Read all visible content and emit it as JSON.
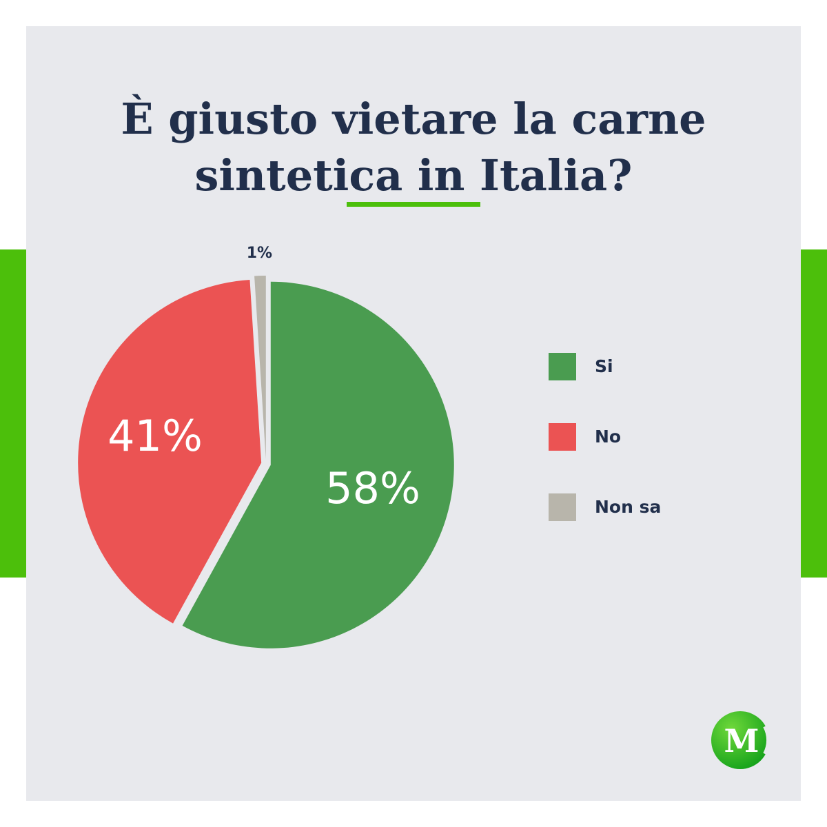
{
  "colors": {
    "background": "#e8e9ed",
    "accent": "#4cbf0b",
    "title_text": "#212f4b",
    "label_text": "#ffffff"
  },
  "chart_data": {
    "type": "pie",
    "title": "È giusto vietare la carne sintetica in Italia?",
    "categories": [
      "Si",
      "No",
      "Non sa"
    ],
    "values": [
      58,
      41,
      1
    ],
    "value_labels": [
      "58%",
      "41%",
      "1%"
    ],
    "colors": [
      "#4a9c50",
      "#eb5353",
      "#b8b5ab"
    ],
    "legend_position": "right"
  },
  "logo": {
    "text": "M",
    "icon": "circle-m-logo"
  }
}
